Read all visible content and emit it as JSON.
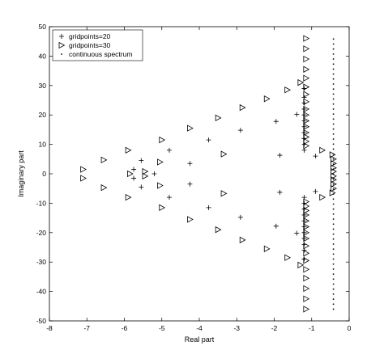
{
  "chart_data": {
    "type": "scatter",
    "title": "",
    "xlabel": "Real part",
    "ylabel": "Imaginary part",
    "xlim": [
      -8,
      0
    ],
    "ylim": [
      -50,
      50
    ],
    "xticks": [
      -8,
      -7,
      -6,
      -5,
      -4,
      -3,
      -2,
      -1,
      0
    ],
    "yticks": [
      -50,
      -40,
      -30,
      -20,
      -10,
      0,
      10,
      20,
      30,
      40,
      50
    ],
    "grid": false,
    "legend_position": "top-left",
    "series": [
      {
        "name": "gridpoints=20",
        "marker": "plus",
        "points": [
          [
            -5.75,
            1.5
          ],
          [
            -5.75,
            -1.5
          ],
          [
            -5.2,
            0
          ],
          [
            -5.55,
            4.5
          ],
          [
            -5.55,
            -4.5
          ],
          [
            -4.8,
            8
          ],
          [
            -4.8,
            -8
          ],
          [
            -4.25,
            3.5
          ],
          [
            -4.25,
            -3.5
          ],
          [
            -3.75,
            11.5
          ],
          [
            -3.75,
            -11.5
          ],
          [
            -2.9,
            14.8
          ],
          [
            -2.9,
            -14.8
          ],
          [
            -1.95,
            17.8
          ],
          [
            -1.95,
            -17.8
          ],
          [
            -1.85,
            6.3
          ],
          [
            -1.85,
            -6.3
          ],
          [
            -1.4,
            20.2
          ],
          [
            -1.4,
            -20.2
          ],
          [
            -0.9,
            6
          ],
          [
            -0.9,
            -6
          ],
          [
            -1.2,
            29
          ],
          [
            -1.2,
            26
          ],
          [
            -1.2,
            24
          ],
          [
            -1.2,
            22
          ],
          [
            -1.2,
            20
          ],
          [
            -1.2,
            18
          ],
          [
            -1.2,
            16
          ],
          [
            -1.2,
            14
          ],
          [
            -1.2,
            12
          ],
          [
            -1.2,
            10
          ],
          [
            -1.2,
            8
          ],
          [
            -1.2,
            -8
          ],
          [
            -1.2,
            -10
          ],
          [
            -1.2,
            -12
          ],
          [
            -1.2,
            -14
          ],
          [
            -1.2,
            -16
          ],
          [
            -1.2,
            -18
          ],
          [
            -1.2,
            -20
          ],
          [
            -1.2,
            -22
          ],
          [
            -1.2,
            -24
          ],
          [
            -1.2,
            -26
          ],
          [
            -1.2,
            -29
          ]
        ]
      },
      {
        "name": "gridpoints=30",
        "marker": "triangle-right",
        "points": [
          [
            -7.1,
            1.5
          ],
          [
            -7.1,
            -1.5
          ],
          [
            -6.55,
            4.7
          ],
          [
            -6.55,
            -4.7
          ],
          [
            -5.9,
            8
          ],
          [
            -5.9,
            -8
          ],
          [
            -5.85,
            0
          ],
          [
            -5.45,
            0.8
          ],
          [
            -5.45,
            -0.8
          ],
          [
            -5.05,
            4
          ],
          [
            -5.05,
            -4
          ],
          [
            -5.0,
            11.5
          ],
          [
            -5.0,
            -11.5
          ],
          [
            -4.25,
            15.5
          ],
          [
            -4.25,
            -15.5
          ],
          [
            -3.5,
            19
          ],
          [
            -3.5,
            -19
          ],
          [
            -3.35,
            6.7
          ],
          [
            -3.35,
            -6.7
          ],
          [
            -2.85,
            22.5
          ],
          [
            -2.85,
            -22.5
          ],
          [
            -2.2,
            25.5
          ],
          [
            -2.2,
            -25.5
          ],
          [
            -1.65,
            28.5
          ],
          [
            -1.65,
            -28.5
          ],
          [
            -1.3,
            31
          ],
          [
            -1.3,
            -31
          ],
          [
            -0.72,
            8
          ],
          [
            -0.72,
            -8
          ],
          [
            -1.15,
            46
          ],
          [
            -1.15,
            42.5
          ],
          [
            -1.15,
            39
          ],
          [
            -1.15,
            35.5
          ],
          [
            -1.15,
            32.5
          ],
          [
            -1.15,
            29.5
          ],
          [
            -1.15,
            27
          ],
          [
            -1.15,
            24.5
          ],
          [
            -1.15,
            22
          ],
          [
            -1.15,
            20
          ],
          [
            -1.15,
            18
          ],
          [
            -1.15,
            16
          ],
          [
            -1.15,
            14
          ],
          [
            -1.15,
            12.5
          ],
          [
            -1.15,
            11
          ],
          [
            -1.15,
            9.5
          ],
          [
            -1.15,
            -9.5
          ],
          [
            -1.15,
            -11
          ],
          [
            -1.15,
            -12.5
          ],
          [
            -1.15,
            -14
          ],
          [
            -1.15,
            -16
          ],
          [
            -1.15,
            -18
          ],
          [
            -1.15,
            -20
          ],
          [
            -1.15,
            -22
          ],
          [
            -1.15,
            -24.5
          ],
          [
            -1.15,
            -27
          ],
          [
            -1.15,
            -29.5
          ],
          [
            -1.15,
            -32.5
          ],
          [
            -1.15,
            -35.5
          ],
          [
            -1.15,
            -39
          ],
          [
            -1.15,
            -42.5
          ],
          [
            -1.15,
            -46
          ],
          [
            -0.45,
            6.5
          ],
          [
            -0.45,
            -6.5
          ],
          [
            -0.42,
            5
          ],
          [
            -0.42,
            -5
          ],
          [
            -0.42,
            3.5
          ],
          [
            -0.42,
            -3.5
          ],
          [
            -0.42,
            2
          ],
          [
            -0.42,
            -2
          ],
          [
            -0.42,
            0.8
          ],
          [
            -0.42,
            -0.8
          ]
        ]
      },
      {
        "name": "continuous spectrum",
        "marker": "dot",
        "x": -0.42,
        "y_range": [
          -46,
          46
        ],
        "y_step": 1.7
      }
    ]
  }
}
